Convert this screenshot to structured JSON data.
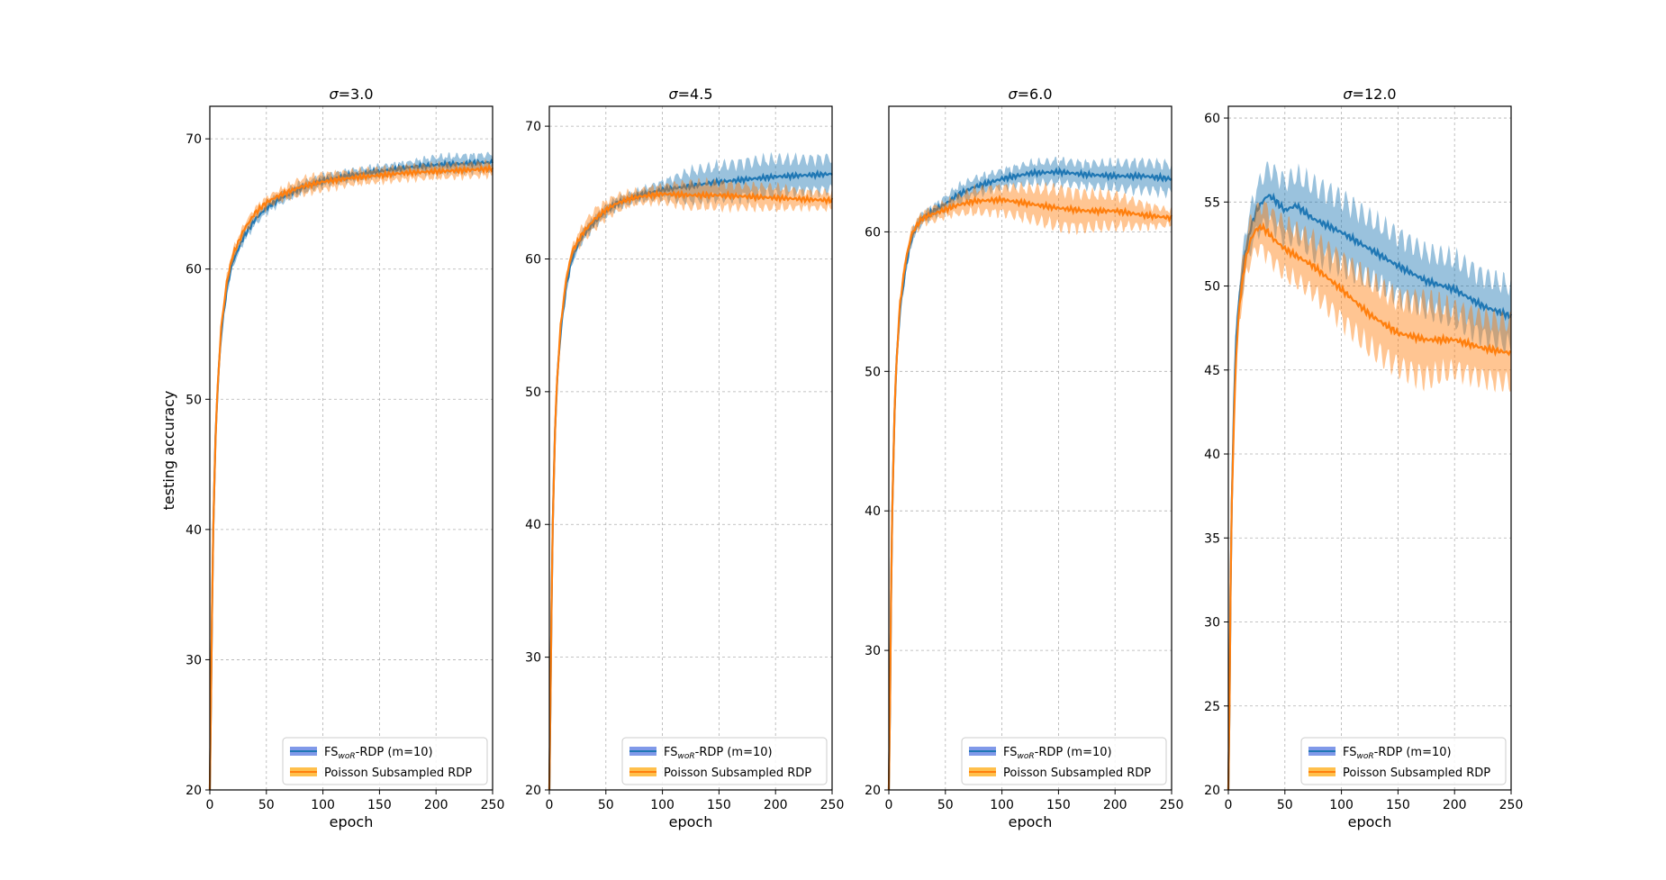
{
  "chart_data": {
    "type": "line",
    "ylabel": "testing accuracy",
    "xlabel": "epoch",
    "legend_position": "bottom-right",
    "legend": {
      "fs_prefix": "FS",
      "fs_subscript": "woR",
      "fs_suffix": "-RDP (m=10)",
      "poisson": "Poisson Subsampled RDP"
    },
    "colors": {
      "fs": "#1f77b4",
      "fs_legend": "#4a6ee0",
      "poisson": "#ff7f0e",
      "poisson_legend": "#ffa500"
    },
    "x_ticks": [
      0,
      50,
      100,
      150,
      200,
      250
    ],
    "panels": [
      {
        "title_symbol": "σ",
        "title_value": "=3.0",
        "xlim": [
          0,
          250
        ],
        "ylim": [
          20,
          72.5
        ],
        "y_ticks": [
          20,
          30,
          40,
          50,
          60,
          70
        ],
        "series": [
          {
            "name": "FS_woR-RDP (m=10)",
            "x": [
              0,
              1,
              2,
              3,
              5,
              7,
              10,
              15,
              20,
              25,
              30,
              40,
              50,
              60,
              80,
              100,
              125,
              150,
              175,
              200,
              225,
              250
            ],
            "y": [
              20,
              27,
              34,
              40,
              47,
              51,
              55,
              58.5,
              60.5,
              61.5,
              62.5,
              63.8,
              64.7,
              65.3,
              66.2,
              66.8,
              67.2,
              67.5,
              67.8,
              68.0,
              68.1,
              68.2
            ],
            "band": [
              0.3,
              0.5,
              0.5,
              0.5,
              0.5,
              0.5,
              0.5,
              0.5,
              0.4,
              0.4,
              0.4,
              0.4,
              0.4,
              0.4,
              0.4,
              0.4,
              0.4,
              0.4,
              0.4,
              0.6,
              0.6,
              0.6
            ]
          },
          {
            "name": "Poisson Subsampled RDP",
            "x": [
              0,
              1,
              2,
              3,
              5,
              7,
              10,
              15,
              20,
              25,
              30,
              40,
              50,
              60,
              80,
              100,
              125,
              150,
              175,
              200,
              225,
              250
            ],
            "y": [
              20,
              27,
              34,
              40,
              47,
              51,
              55.5,
              59,
              61,
              62,
              63,
              64.3,
              65.1,
              65.6,
              66.3,
              66.7,
              67.0,
              67.2,
              67.4,
              67.5,
              67.6,
              67.7
            ],
            "band": [
              0.3,
              0.5,
              0.5,
              0.5,
              0.5,
              0.5,
              0.5,
              0.5,
              0.4,
              0.4,
              0.4,
              0.4,
              0.4,
              0.4,
              0.6,
              0.6,
              0.5,
              0.5,
              0.5,
              0.5,
              0.5,
              0.5
            ]
          }
        ]
      },
      {
        "title_symbol": "σ",
        "title_value": "=4.5",
        "xlim": [
          0,
          250
        ],
        "ylim": [
          20,
          71.5
        ],
        "y_ticks": [
          20,
          30,
          40,
          50,
          60,
          70
        ],
        "series": [
          {
            "name": "FS_woR-RDP (m=10)",
            "x": [
              0,
              1,
              2,
              3,
              5,
              7,
              10,
              15,
              20,
              25,
              30,
              40,
              50,
              60,
              70,
              80,
              100,
              125,
              150,
              175,
              200,
              225,
              250
            ],
            "y": [
              20,
              27,
              34,
              40,
              47,
              51,
              54.5,
              58,
              60,
              61,
              61.8,
              62.8,
              63.6,
              64.2,
              64.5,
              64.8,
              65.2,
              65.5,
              65.8,
              66.0,
              66.2,
              66.3,
              66.4
            ],
            "band": [
              0.3,
              0.5,
              0.5,
              0.5,
              0.5,
              0.5,
              0.5,
              0.5,
              0.4,
              0.4,
              0.4,
              0.4,
              0.4,
              0.4,
              0.4,
              0.4,
              0.6,
              1.1,
              1.2,
              1.3,
              1.3,
              1.2,
              1.2
            ]
          },
          {
            "name": "Poisson Subsampled RDP",
            "x": [
              0,
              1,
              2,
              3,
              5,
              7,
              10,
              15,
              20,
              25,
              30,
              40,
              50,
              60,
              70,
              80,
              100,
              125,
              150,
              175,
              200,
              225,
              250
            ],
            "y": [
              20,
              27,
              34,
              40,
              47,
              51,
              55,
              58.5,
              60.5,
              61.3,
              62,
              63,
              63.7,
              64.2,
              64.5,
              64.7,
              64.9,
              64.8,
              64.8,
              64.7,
              64.6,
              64.5,
              64.4
            ],
            "band": [
              0.3,
              0.5,
              0.5,
              0.5,
              0.5,
              0.5,
              0.5,
              0.5,
              0.4,
              0.5,
              0.6,
              0.7,
              0.6,
              0.6,
              0.5,
              0.5,
              0.6,
              0.9,
              0.9,
              0.8,
              0.8,
              0.6,
              0.6
            ]
          }
        ]
      },
      {
        "title_symbol": "σ",
        "title_value": "=6.0",
        "xlim": [
          0,
          250
        ],
        "ylim": [
          20,
          69
        ],
        "y_ticks": [
          20,
          30,
          40,
          50,
          60
        ],
        "series": [
          {
            "name": "FS_woR-RDP (m=10)",
            "x": [
              0,
              1,
              2,
              3,
              5,
              7,
              10,
              15,
              20,
              25,
              30,
              40,
              50,
              60,
              75,
              100,
              125,
              150,
              175,
              200,
              225,
              250
            ],
            "y": [
              20,
              26,
              34,
              40,
              47,
              51,
              54.5,
              57.5,
              59.5,
              60.5,
              61,
              61.5,
              62,
              62.6,
              63.2,
              63.8,
              64.2,
              64.3,
              64.1,
              64.0,
              64.0,
              63.8
            ],
            "band": [
              0.3,
              0.5,
              0.5,
              0.5,
              0.5,
              0.5,
              0.5,
              0.5,
              0.4,
              0.4,
              0.4,
              0.4,
              0.5,
              0.6,
              0.6,
              0.6,
              0.7,
              0.8,
              0.8,
              0.9,
              1.0,
              1.0
            ]
          },
          {
            "name": "Poisson Subsampled RDP",
            "x": [
              0,
              1,
              2,
              3,
              5,
              7,
              10,
              15,
              20,
              25,
              30,
              40,
              50,
              60,
              75,
              100,
              125,
              150,
              175,
              200,
              225,
              250
            ],
            "y": [
              20,
              26,
              34,
              40,
              47,
              51,
              55,
              58,
              59.8,
              60.5,
              61,
              61.3,
              61.6,
              61.9,
              62.2,
              62.3,
              62.0,
              61.7,
              61.5,
              61.5,
              61.2,
              61.0
            ],
            "band": [
              0.3,
              0.5,
              0.5,
              0.5,
              0.5,
              0.5,
              0.5,
              0.5,
              0.4,
              0.4,
              0.4,
              0.5,
              0.5,
              0.6,
              0.8,
              0.9,
              1.1,
              1.3,
              1.2,
              1.1,
              0.8,
              0.5
            ]
          }
        ]
      },
      {
        "title_symbol": "σ",
        "title_value": "=12.0",
        "xlim": [
          0,
          250
        ],
        "ylim": [
          20,
          60.7
        ],
        "y_ticks": [
          20,
          25,
          30,
          35,
          40,
          45,
          50,
          55,
          60
        ],
        "series": [
          {
            "name": "FS_woR-RDP (m=10)",
            "x": [
              0,
              1,
              2,
              3,
              5,
              7,
              10,
              15,
              20,
              25,
              30,
              35,
              40,
              50,
              60,
              75,
              100,
              125,
              150,
              175,
              200,
              225,
              250
            ],
            "y": [
              20,
              25,
              32,
              37,
              43,
              47,
              49.5,
              52,
              53.5,
              54.5,
              55,
              55.4,
              55.2,
              54.5,
              54.8,
              54,
              53.2,
              52.2,
              51.2,
              50.3,
              49.8,
              48.8,
              48.2
            ],
            "band": [
              0.3,
              0.5,
              0.6,
              0.7,
              0.8,
              0.9,
              1.0,
              1.1,
              1.2,
              1.3,
              1.5,
              1.6,
              1.6,
              1.7,
              1.8,
              2.0,
              2.0,
              1.8,
              1.8,
              1.7,
              1.8,
              1.8,
              1.8
            ]
          },
          {
            "name": "Poisson Subsampled RDP",
            "x": [
              0,
              1,
              2,
              3,
              5,
              7,
              10,
              15,
              20,
              25,
              30,
              35,
              40,
              50,
              60,
              75,
              100,
              125,
              150,
              175,
              200,
              225,
              250
            ],
            "y": [
              20,
              25,
              32,
              37,
              42,
              46,
              49,
              51.5,
              52.8,
              53.4,
              53.5,
              53.2,
              52.8,
              52.2,
              51.8,
              51.2,
              49.8,
              48.3,
              47.2,
              46.8,
              46.8,
              46.3,
              46.0
            ],
            "band": [
              0.3,
              0.5,
              0.6,
              0.7,
              0.8,
              0.9,
              1.0,
              1.1,
              1.2,
              1.2,
              1.3,
              1.4,
              1.4,
              1.5,
              1.5,
              1.6,
              1.8,
              2.0,
              2.0,
              2.3,
              1.8,
              1.8,
              1.8
            ]
          }
        ]
      }
    ]
  }
}
